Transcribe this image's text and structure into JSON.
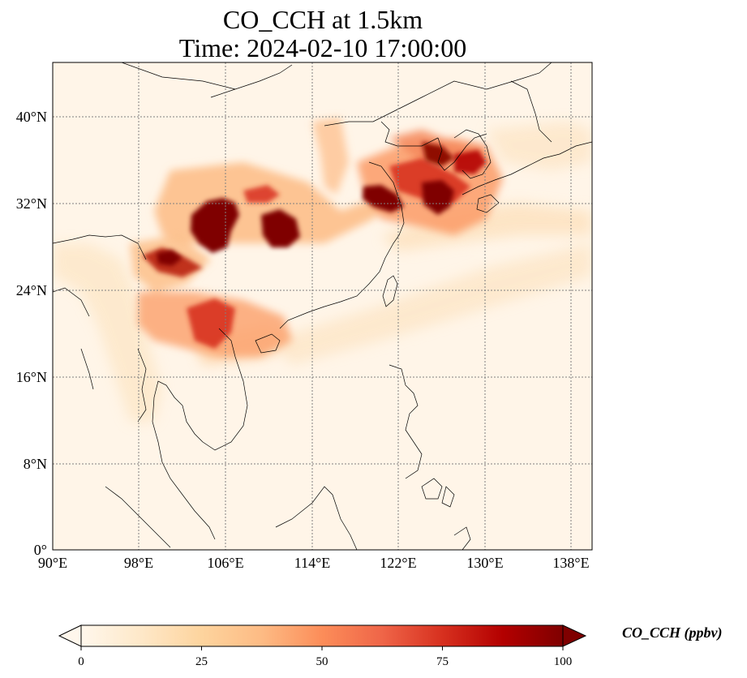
{
  "map": {
    "title_line1": "CO_CCH at 1.5km",
    "title_line2": "Time: 2024-02-10 17:00:00",
    "lon_ticks": [
      "90°E",
      "98°E",
      "106°E",
      "114°E",
      "122°E",
      "130°E",
      "138°E"
    ],
    "lat_ticks": [
      "0°",
      "8°N",
      "16°N",
      "24°N",
      "32°N",
      "40°N"
    ],
    "colormap": "OrRd",
    "colors": {
      "low": "#fff7ec",
      "mid_low": "#fdd49e",
      "mid": "#fc8d59",
      "mid_high": "#d7301f",
      "high": "#7f0000",
      "coastline": "#000000",
      "gridline": "#808080"
    }
  },
  "colorbar": {
    "label": "CO_CCH (ppbv)",
    "ticks": [
      "0",
      "25",
      "50",
      "75",
      "100"
    ],
    "range": [
      0,
      100
    ],
    "extend": "both"
  }
}
